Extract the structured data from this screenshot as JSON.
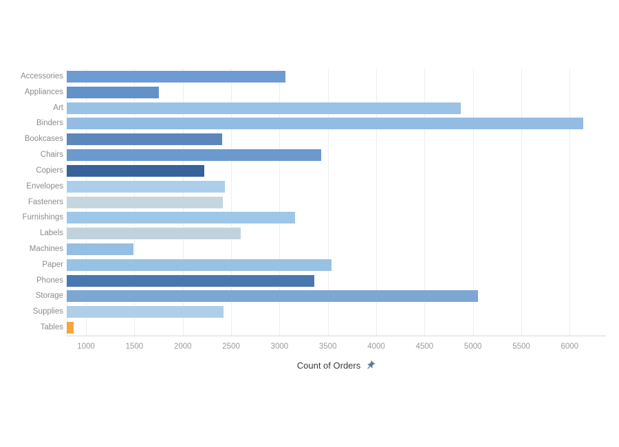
{
  "window": {
    "background": "#ffffff"
  },
  "chart_data": {
    "type": "bar",
    "orientation": "horizontal",
    "title": "",
    "xlabel": "Count of Orders",
    "xlabel_icon": "pushpin-icon",
    "ylabel": "",
    "legend": "none",
    "grid": true,
    "categories": [
      "Accessories",
      "Appliances",
      "Art",
      "Binders",
      "Bookcases",
      "Chairs",
      "Copiers",
      "Envelopes",
      "Fasteners",
      "Furnishings",
      "Labels",
      "Machines",
      "Paper",
      "Phones",
      "Storage",
      "Supplies",
      "Tables"
    ],
    "values": [
      3060,
      1750,
      4875,
      6140,
      2410,
      3430,
      2225,
      2435,
      2415,
      3160,
      2600,
      1490,
      3535,
      3360,
      5050,
      2420,
      870
    ],
    "bar_colors": [
      "#6e9bd1",
      "#6292c7",
      "#9ac2e5",
      "#93bce3",
      "#5b87bd",
      "#6c99ce",
      "#38629a",
      "#abcfea",
      "#c5d6df",
      "#9cc7e9",
      "#c0d3dd",
      "#95bfe2",
      "#98c2e4",
      "#4a77ae",
      "#7ca7d3",
      "#aecfe7",
      "#f2a73e"
    ],
    "axis": {
      "min": 800,
      "max": 6375,
      "tick_values": [
        1000,
        1500,
        2000,
        2500,
        3000,
        3500,
        4000,
        4500,
        5000,
        5500,
        6000
      ],
      "tick_labels": [
        "1000",
        "1500",
        "2000",
        "2500",
        "3000",
        "3500",
        "4000",
        "4500",
        "5000",
        "5500",
        "6000"
      ]
    },
    "styles": {
      "grid_color": "#eeeeee",
      "baseline_color": "#d9d9d9",
      "category_label_color": "#8b8b8b",
      "tick_label_color": "#9b9b9b",
      "xlabel_color": "#3a3a3a",
      "pin_color": "#5e7b94",
      "highlight_color": "#f2a73e"
    }
  }
}
